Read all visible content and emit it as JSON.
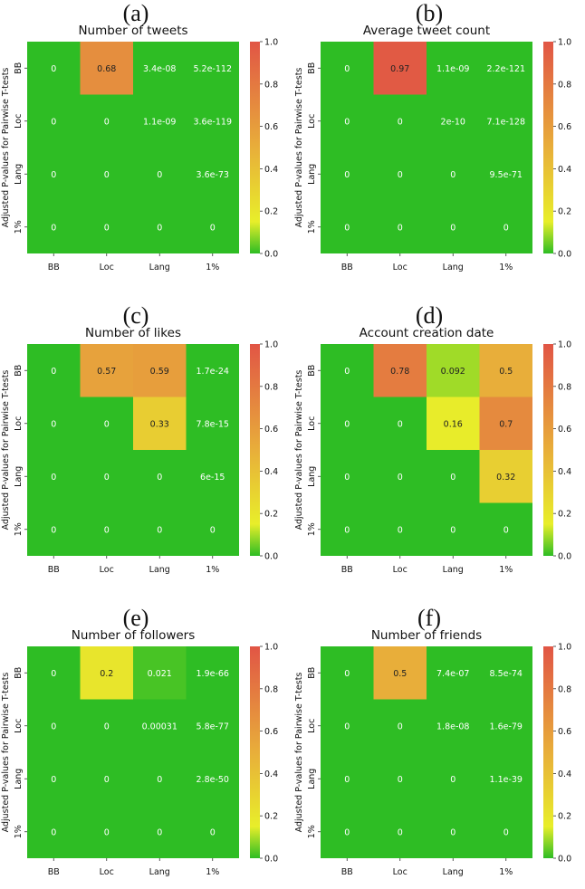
{
  "row_labels": [
    "BB",
    "Loc",
    "Lang",
    "1%"
  ],
  "col_labels": [
    "BB",
    "Loc",
    "Lang",
    "1%"
  ],
  "ylabel": "Adjusted P-values for Pairwise T-tests",
  "colorbar": {
    "ticks": [
      "0.0",
      "0.2",
      "0.4",
      "0.6",
      "0.8",
      "1.0"
    ],
    "tick_values": [
      0.0,
      0.2,
      0.4,
      0.6,
      0.8,
      1.0
    ],
    "colors": [
      "#2ebd24",
      "#e8ee2a",
      "#e8ae3a",
      "#e15545"
    ]
  },
  "text_colors": {
    "on_green": "#ffffff",
    "on_light": "#222222"
  },
  "panels": [
    {
      "label": "(a)"
    },
    {
      "label": "(b)"
    },
    {
      "label": "(c)"
    },
    {
      "label": "(d)"
    },
    {
      "label": "(e)"
    },
    {
      "label": "(f)"
    }
  ],
  "chart_data": [
    {
      "type": "heatmap",
      "title": "Number of tweets",
      "vmin": 0,
      "vmax": 1,
      "values": [
        [
          0,
          0.68,
          3.4e-08,
          5.2e-112
        ],
        [
          0,
          0,
          1.1e-09,
          3.6e-119
        ],
        [
          0,
          0,
          0,
          3.6e-73
        ],
        [
          0,
          0,
          0,
          0
        ]
      ],
      "annotations": [
        [
          "0",
          "0.68",
          "3.4e-08",
          "5.2e-112"
        ],
        [
          "0",
          "0",
          "1.1e-09",
          "3.6e-119"
        ],
        [
          "0",
          "0",
          "0",
          "3.6e-73"
        ],
        [
          "0",
          "0",
          "0",
          "0"
        ]
      ]
    },
    {
      "type": "heatmap",
      "title": "Average tweet count",
      "vmin": 0,
      "vmax": 1,
      "values": [
        [
          0,
          0.97,
          1.1e-09,
          2.2e-121
        ],
        [
          0,
          0,
          2e-10,
          7.1e-128
        ],
        [
          0,
          0,
          0,
          9.5e-71
        ],
        [
          0,
          0,
          0,
          0
        ]
      ],
      "annotations": [
        [
          "0",
          "0.97",
          "1.1e-09",
          "2.2e-121"
        ],
        [
          "0",
          "0",
          "2e-10",
          "7.1e-128"
        ],
        [
          "0",
          "0",
          "0",
          "9.5e-71"
        ],
        [
          "0",
          "0",
          "0",
          "0"
        ]
      ]
    },
    {
      "type": "heatmap",
      "title": "Number of likes",
      "vmin": 0,
      "vmax": 1,
      "values": [
        [
          0,
          0.57,
          0.59,
          1.7e-24
        ],
        [
          0,
          0,
          0.33,
          7.8e-15
        ],
        [
          0,
          0,
          0,
          6e-15
        ],
        [
          0,
          0,
          0,
          0
        ]
      ],
      "annotations": [
        [
          "0",
          "0.57",
          "0.59",
          "1.7e-24"
        ],
        [
          "0",
          "0",
          "0.33",
          "7.8e-15"
        ],
        [
          "0",
          "0",
          "0",
          "6e-15"
        ],
        [
          "0",
          "0",
          "0",
          "0"
        ]
      ]
    },
    {
      "type": "heatmap",
      "title": "Account creation date",
      "vmin": 0,
      "vmax": 1,
      "values": [
        [
          0,
          0.78,
          0.092,
          0.5
        ],
        [
          0,
          0,
          0.16,
          0.7
        ],
        [
          0,
          0,
          0,
          0.32
        ],
        [
          0,
          0,
          0,
          0
        ]
      ],
      "annotations": [
        [
          "0",
          "0.78",
          "0.092",
          "0.5"
        ],
        [
          "0",
          "0",
          "0.16",
          "0.7"
        ],
        [
          "0",
          "0",
          "0",
          "0.32"
        ],
        [
          "0",
          "0",
          "0",
          "0"
        ]
      ]
    },
    {
      "type": "heatmap",
      "title": "Number of followers",
      "vmin": 0,
      "vmax": 1,
      "values": [
        [
          0,
          0.2,
          0.021,
          1.9e-66
        ],
        [
          0,
          0,
          0.00031,
          5.8e-77
        ],
        [
          0,
          0,
          0,
          2.8e-50
        ],
        [
          0,
          0,
          0,
          0
        ]
      ],
      "annotations": [
        [
          "0",
          "0.2",
          "0.021",
          "1.9e-66"
        ],
        [
          "0",
          "0",
          "0.00031",
          "5.8e-77"
        ],
        [
          "0",
          "0",
          "0",
          "2.8e-50"
        ],
        [
          "0",
          "0",
          "0",
          "0"
        ]
      ]
    },
    {
      "type": "heatmap",
      "title": "Number of friends",
      "vmin": 0,
      "vmax": 1,
      "values": [
        [
          0,
          0.5,
          7.4e-07,
          8.5e-74
        ],
        [
          0,
          0,
          1.8e-08,
          1.6e-79
        ],
        [
          0,
          0,
          0,
          1.1e-39
        ],
        [
          0,
          0,
          0,
          0
        ]
      ],
      "annotations": [
        [
          "0",
          "0.5",
          "7.4e-07",
          "8.5e-74"
        ],
        [
          "0",
          "0",
          "1.8e-08",
          "1.6e-79"
        ],
        [
          "0",
          "0",
          "0",
          "1.1e-39"
        ],
        [
          "0",
          "0",
          "0",
          "0"
        ]
      ]
    }
  ]
}
